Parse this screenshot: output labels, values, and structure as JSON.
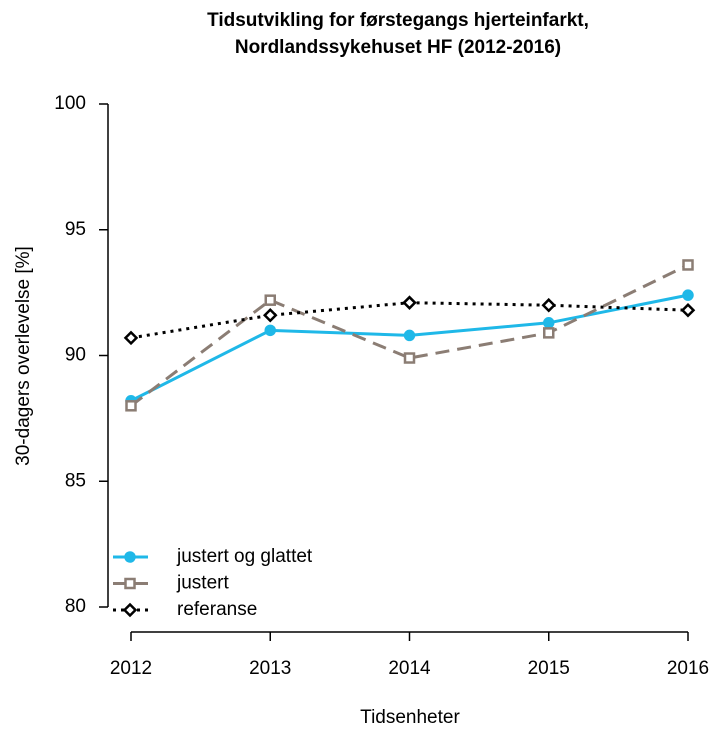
{
  "chart_data": {
    "type": "line",
    "title": [
      "Tidsutvikling for førstegangs hjerteinfarkt,",
      "Nordlandssykehuset HF (2012-2016)"
    ],
    "x_label": "Tidsenheter",
    "y_label": "30-dagers overlevelse [%]",
    "x": [
      2012,
      2013,
      2014,
      2015,
      2016
    ],
    "xlim": [
      2012,
      2016
    ],
    "xticks": [
      2012,
      2013,
      2014,
      2015,
      2016
    ],
    "ylim": [
      80,
      100
    ],
    "yticks": [
      80,
      85,
      90,
      95,
      100
    ],
    "legend": "bottom left",
    "series": [
      {
        "name": "justert og glattet",
        "color": "#1fb8e8",
        "linestyle": "solid",
        "marker": "circle",
        "values": [
          88.2,
          91.0,
          90.8,
          91.3,
          92.4
        ]
      },
      {
        "name": "justert",
        "color": "#8b7d74",
        "linestyle": "dashed",
        "marker": "square",
        "values": [
          88.0,
          92.2,
          89.9,
          90.9,
          93.6
        ]
      },
      {
        "name": "referanse",
        "color": "#000000",
        "linestyle": "dotted",
        "marker": "diamond",
        "values": [
          90.7,
          91.6,
          92.1,
          92.0,
          91.8
        ]
      }
    ]
  }
}
